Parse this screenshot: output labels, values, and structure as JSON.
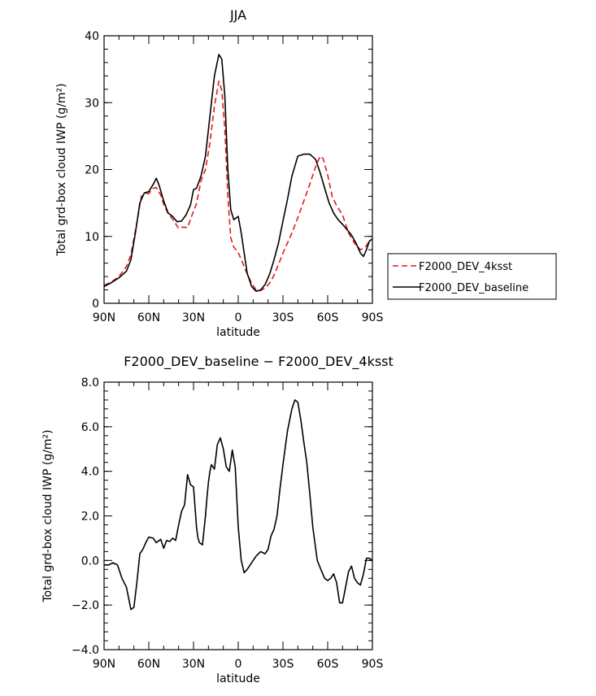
{
  "chart_data": [
    {
      "type": "line",
      "title": "JJA",
      "xlabel": "latitude",
      "ylabel": "Total grd-box cloud IWP (g/m²)",
      "xlim": [
        90,
        -90
      ],
      "ylim": [
        0,
        40
      ],
      "x_ticks": [
        90,
        60,
        30,
        0,
        -30,
        -60,
        -90
      ],
      "x_tick_labels": [
        "90N",
        "60N",
        "30N",
        "0",
        "30S",
        "60S",
        "90S"
      ],
      "y_ticks": [
        0,
        10,
        20,
        30,
        40
      ],
      "y_tick_labels": [
        "0",
        "10",
        "20",
        "30",
        "40"
      ],
      "legend": "outside-right",
      "series": [
        {
          "name": "F2000_DEV_4ksst",
          "color": "#e41a1c",
          "dash": "dashed",
          "x": [
            90,
            85,
            80,
            75,
            72,
            68,
            65,
            62,
            60,
            57,
            55,
            52,
            50,
            47,
            44,
            40,
            37,
            34,
            31,
            28,
            25,
            22,
            19,
            16,
            13,
            11,
            9,
            7,
            5,
            3,
            0,
            -3,
            -6,
            -9,
            -12,
            -15,
            -18,
            -21,
            -24,
            -27,
            -30,
            -33,
            -36,
            -40,
            -44,
            -48,
            -52,
            -55,
            -57,
            -60,
            -63,
            -66,
            -70,
            -74,
            -78,
            -82,
            -85,
            -88,
            -90
          ],
          "y": [
            2.7,
            3.2,
            4.0,
            5.5,
            7.3,
            12.0,
            16.0,
            16.4,
            16.4,
            17.2,
            17.3,
            16.2,
            14.8,
            13.4,
            12.6,
            11.2,
            11.4,
            11.3,
            13.2,
            14.9,
            18.3,
            20.0,
            24.0,
            29.5,
            33.2,
            31.8,
            26.0,
            16.0,
            9.8,
            8.4,
            7.6,
            6.0,
            4.4,
            3.0,
            2.0,
            1.9,
            2.3,
            3.0,
            4.2,
            5.8,
            7.5,
            9.0,
            10.5,
            12.8,
            15.3,
            17.8,
            20.5,
            22.0,
            21.6,
            19.2,
            16.0,
            14.6,
            13.2,
            10.5,
            9.0,
            8.0,
            8.3,
            9.3,
            9.6
          ]
        },
        {
          "name": "F2000_DEV_baseline",
          "color": "#000000",
          "dash": "solid",
          "x": [
            90,
            85,
            80,
            75,
            72,
            69,
            66,
            63,
            60,
            57,
            55,
            53,
            50,
            47,
            44,
            41,
            38,
            35,
            32,
            30,
            28,
            25,
            22,
            19,
            16,
            13,
            11,
            9,
            7,
            5,
            3,
            0,
            -2,
            -4,
            -6,
            -9,
            -12,
            -15,
            -18,
            -21,
            -24,
            -27,
            -30,
            -33,
            -36,
            -40,
            -44,
            -48,
            -52,
            -55,
            -58,
            -61,
            -64,
            -67,
            -70,
            -73,
            -76,
            -79,
            -82,
            -84,
            -86,
            -88,
            -90
          ],
          "y": [
            2.5,
            3.1,
            3.8,
            4.8,
            6.5,
            10.5,
            15.0,
            16.5,
            16.7,
            17.8,
            18.7,
            17.6,
            15.3,
            13.5,
            13.0,
            12.2,
            12.3,
            13.2,
            14.7,
            17.0,
            17.2,
            19.0,
            22.0,
            28.0,
            34.0,
            37.2,
            36.5,
            31.0,
            20.0,
            14.0,
            12.5,
            13.0,
            10.5,
            7.5,
            4.5,
            2.5,
            1.8,
            2.0,
            2.8,
            4.3,
            6.5,
            9.0,
            12.3,
            15.5,
            19.0,
            22.0,
            22.3,
            22.3,
            21.5,
            19.5,
            17.2,
            15.0,
            13.5,
            12.5,
            11.8,
            11.0,
            10.2,
            9.0,
            7.5,
            7.0,
            8.0,
            9.3,
            9.6
          ]
        }
      ]
    },
    {
      "type": "line",
      "title": "F2000_DEV_baseline − F2000_DEV_4ksst",
      "xlabel": "latitude",
      "ylabel": "Total grd-box cloud IWP (g/m²)",
      "xlim": [
        90,
        -90
      ],
      "ylim": [
        -4,
        8
      ],
      "x_ticks": [
        90,
        60,
        30,
        0,
        -30,
        -60,
        -90
      ],
      "x_tick_labels": [
        "90N",
        "60N",
        "30N",
        "0",
        "30S",
        "60S",
        "90S"
      ],
      "y_ticks": [
        -4,
        -2,
        0,
        2,
        4,
        6,
        8
      ],
      "y_tick_labels": [
        "−4.0",
        "−2.0",
        "0.0",
        "2.0",
        "4.0",
        "6.0",
        "8.0"
      ],
      "series": [
        {
          "name": "",
          "color": "#000000",
          "dash": "solid",
          "x": [
            90,
            87,
            84,
            81,
            78,
            75,
            72,
            70,
            68,
            66,
            64,
            62,
            60,
            57,
            55,
            52,
            50,
            48,
            46,
            44,
            42,
            40,
            38,
            36,
            34,
            32,
            30,
            28,
            27,
            26,
            24,
            22,
            21,
            20,
            19,
            18,
            16,
            14,
            12,
            10,
            8,
            6,
            4,
            2,
            0,
            -2,
            -4,
            -6,
            -8,
            -10,
            -12,
            -15,
            -18,
            -20,
            -22,
            -24,
            -26,
            -28,
            -30,
            -33,
            -36,
            -38,
            -40,
            -42,
            -44,
            -46,
            -48,
            -50,
            -53,
            -56,
            -58,
            -60,
            -62,
            -64,
            -66,
            -68,
            -70,
            -72,
            -74,
            -76,
            -78,
            -80,
            -82,
            -84,
            -86,
            -88,
            -90
          ],
          "y": [
            -0.2,
            -0.2,
            -0.1,
            -0.2,
            -0.8,
            -1.2,
            -2.2,
            -2.1,
            -1.0,
            0.3,
            0.5,
            0.8,
            1.05,
            1.0,
            0.8,
            0.95,
            0.55,
            0.9,
            0.85,
            1.0,
            0.9,
            1.6,
            2.2,
            2.5,
            3.85,
            3.4,
            3.3,
            1.5,
            1.0,
            0.8,
            0.7,
            2.0,
            2.8,
            3.5,
            4.0,
            4.3,
            4.1,
            5.2,
            5.5,
            5.0,
            4.2,
            4.0,
            4.95,
            4.2,
            1.5,
            0.0,
            -0.55,
            -0.4,
            -0.2,
            0.0,
            0.2,
            0.4,
            0.3,
            0.5,
            1.1,
            1.4,
            2.0,
            3.2,
            4.3,
            5.8,
            6.8,
            7.2,
            7.1,
            6.3,
            5.3,
            4.4,
            3.0,
            1.5,
            0.0,
            -0.5,
            -0.8,
            -0.9,
            -0.8,
            -0.6,
            -1.0,
            -1.9,
            -1.9,
            -1.2,
            -0.5,
            -0.25,
            -0.8,
            -1.0,
            -1.1,
            -0.6,
            0.1,
            0.1,
            0.0
          ]
        }
      ]
    }
  ]
}
